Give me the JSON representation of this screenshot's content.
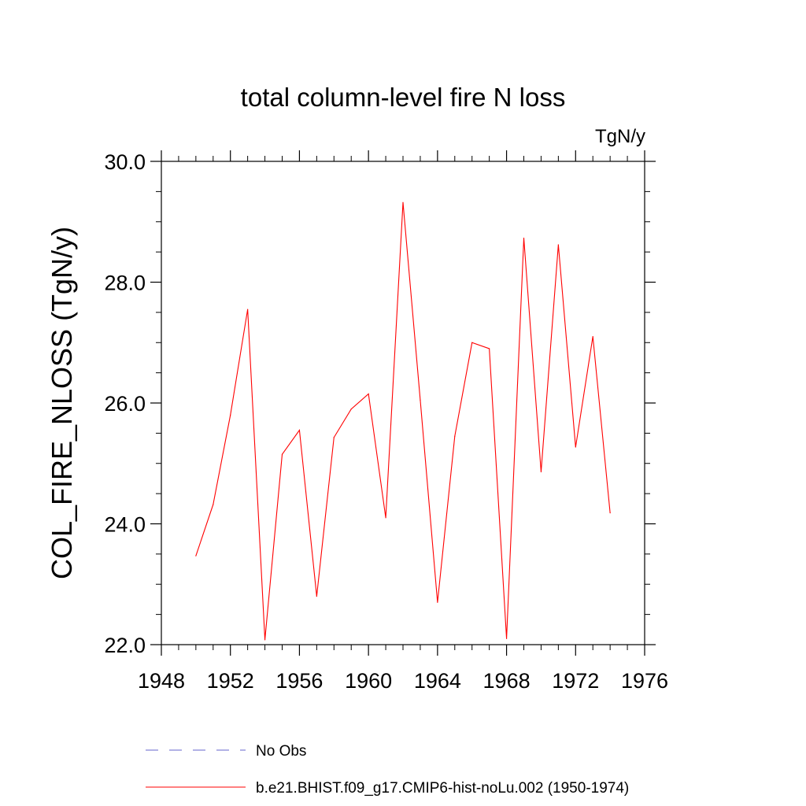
{
  "chart_data": {
    "type": "line",
    "title": "total column-level fire N loss",
    "units": "TgN/y",
    "ylabel": "COL_FIRE_NLOSS  (TgN/y)",
    "xlabel": "",
    "xlim": [
      1948,
      1976
    ],
    "ylim": [
      22.0,
      30.0
    ],
    "x_ticks": [
      "1948",
      "1952",
      "1956",
      "1960",
      "1964",
      "1968",
      "1972",
      "1976"
    ],
    "y_ticks": [
      "22.0",
      "24.0",
      "26.0",
      "28.0",
      "30.0"
    ],
    "grid": false,
    "legend_position": "bottom",
    "series": [
      {
        "name": "No Obs",
        "color": "#6666cc",
        "dash": "dashed",
        "x": [],
        "y": []
      },
      {
        "name": "b.e21.BHIST.f09_g17.CMIP6-hist-noLu.002 (1950-1974)",
        "color": "#ff0000",
        "dash": "solid",
        "x": [
          1950,
          1951,
          1952,
          1953,
          1954,
          1955,
          1956,
          1957,
          1958,
          1959,
          1960,
          1961,
          1962,
          1963,
          1964,
          1965,
          1966,
          1967,
          1968,
          1969,
          1970,
          1971,
          1972,
          1973,
          1974
        ],
        "y": [
          23.47,
          24.32,
          25.8,
          27.55,
          22.08,
          25.15,
          25.55,
          22.8,
          25.43,
          25.9,
          26.15,
          24.1,
          29.32,
          26.05,
          22.7,
          25.45,
          27.0,
          26.9,
          22.1,
          28.73,
          24.86,
          28.62,
          25.27,
          27.1,
          24.18
        ]
      }
    ]
  }
}
